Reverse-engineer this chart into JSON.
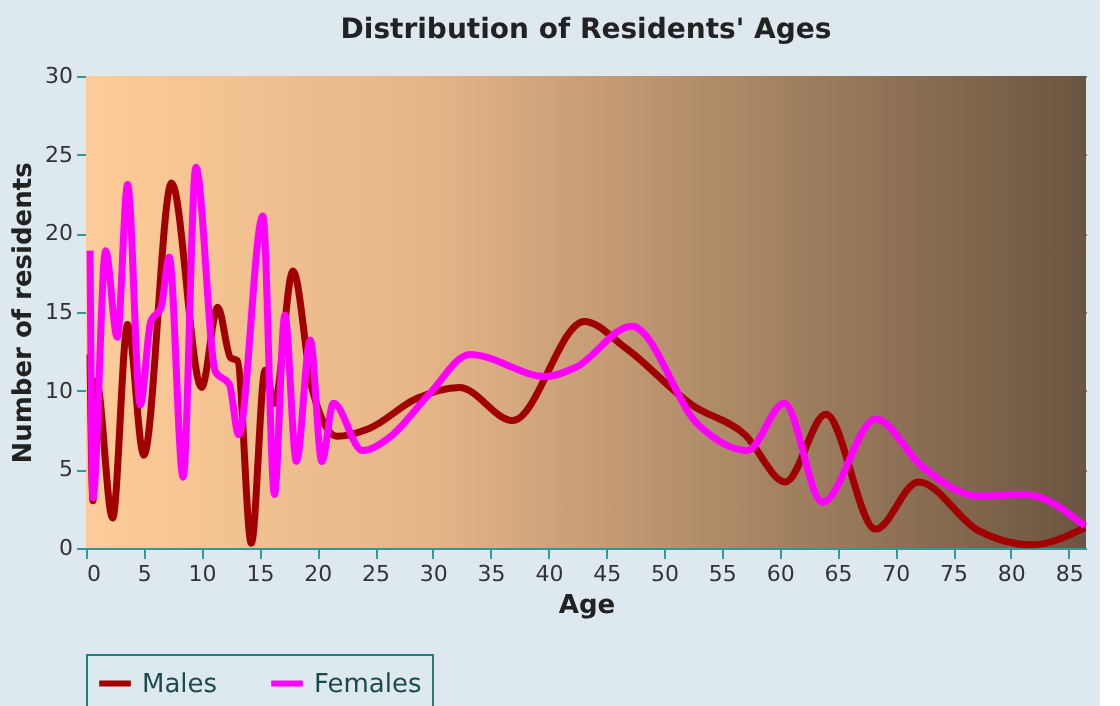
{
  "chart_data": {
    "type": "line",
    "title": "Distribution of Residents' Ages",
    "xlabel": "Age",
    "ylabel": "Number of residents",
    "xlim": [
      0,
      86.5
    ],
    "xticks": [
      0,
      5,
      10,
      15,
      20,
      25,
      30,
      35,
      40,
      45,
      50,
      55,
      60,
      65,
      70,
      75,
      80,
      85
    ],
    "ylim": [
      0,
      30
    ],
    "yticks": [
      0,
      5,
      10,
      15,
      20,
      25,
      30
    ],
    "grid": true,
    "legend": "bottom",
    "marker": "none",
    "line_style": "solid",
    "series": [
      {
        "name": "Males",
        "color": "#a00000",
        "x": [
          0.35,
          0.6,
          0.9,
          2.3,
          3.6,
          5.0,
          7.4,
          10.0,
          11.4,
          12.5,
          13.1,
          14.3,
          15.5,
          16.3,
          17.9,
          19.6,
          21.7,
          24.5,
          28.6,
          32.3,
          36.9,
          43.1,
          46.7,
          52.4,
          57.0,
          60.5,
          64.0,
          68.3,
          72.0,
          77.2,
          81.8,
          86.4
        ],
        "values": [
          12.3,
          3,
          10.6,
          1.9,
          14.2,
          5.9,
          23.2,
          10.2,
          15.3,
          12.1,
          11.9,
          0.3,
          11.3,
          9.2,
          17.6,
          10,
          7.1,
          7.6,
          9.5,
          10.2,
          8.1,
          14.4,
          12.7,
          9.1,
          7.2,
          4.2,
          8.5,
          1.2,
          4.2,
          1.1,
          0.2,
          1.3
        ]
      },
      {
        "name": "Females",
        "color": "#ff00ff",
        "x": [
          0.35,
          0.6,
          1.7,
          2.7,
          3.6,
          4.7,
          5.6,
          6.5,
          7.2,
          8.4,
          9.5,
          11.2,
          12.4,
          13.2,
          15.3,
          16.3,
          17.2,
          18.2,
          19.4,
          20.4,
          21.4,
          23.9,
          26.2,
          29.7,
          33.2,
          39.8,
          42.4,
          47.2,
          53.0,
          57.2,
          60.4,
          63.7,
          68.3,
          72.3,
          77.2,
          81.2,
          86.4
        ],
        "values": [
          18.9,
          3.2,
          18.9,
          13.4,
          23.1,
          9.1,
          14.4,
          15.3,
          18.5,
          4.5,
          24.2,
          11.2,
          10.4,
          7.2,
          21.1,
          3.4,
          14.8,
          5.5,
          13.2,
          5.5,
          9.2,
          6.2,
          7.0,
          9.8,
          12.3,
          10.9,
          11.5,
          14.1,
          7.8,
          6.2,
          9.2,
          2.9,
          8.2,
          5.2,
          3.3,
          3.4,
          1.4
        ]
      }
    ]
  }
}
